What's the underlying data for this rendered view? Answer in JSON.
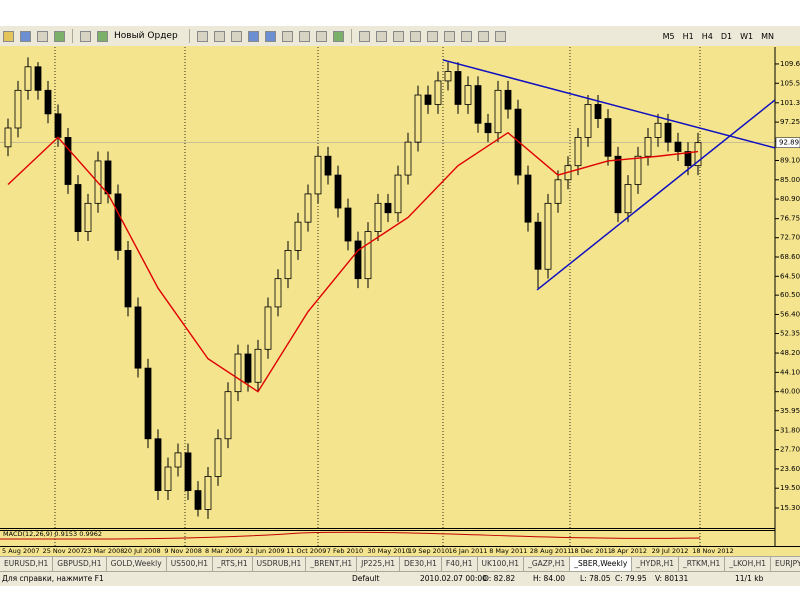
{
  "toolbar": {
    "new_order": "Новый Ордер",
    "timeframes": [
      "M5",
      "H1",
      "H4",
      "D1",
      "W1",
      "MN"
    ]
  },
  "chart_data": {
    "type": "candlestick",
    "background": "#f4e48e",
    "candle_color": "#000000",
    "ohlc": [
      [
        92,
        98,
        90,
        96
      ],
      [
        96,
        106,
        94,
        104
      ],
      [
        104,
        111,
        102,
        109
      ],
      [
        109,
        110,
        102,
        104
      ],
      [
        104,
        106,
        97,
        99
      ],
      [
        99,
        101,
        92,
        94
      ],
      [
        94,
        96,
        82,
        84
      ],
      [
        84,
        86,
        72,
        74
      ],
      [
        74,
        82,
        72,
        80
      ],
      [
        80,
        91,
        78,
        89
      ],
      [
        89,
        91,
        80,
        82
      ],
      [
        82,
        84,
        68,
        70
      ],
      [
        70,
        72,
        56,
        58
      ],
      [
        58,
        60,
        43,
        45
      ],
      [
        45,
        47,
        28,
        30
      ],
      [
        30,
        32,
        17,
        19
      ],
      [
        19,
        26,
        17,
        24
      ],
      [
        24,
        29,
        22,
        27
      ],
      [
        27,
        29,
        17,
        19
      ],
      [
        19,
        21,
        13.5,
        15
      ],
      [
        15,
        24,
        13,
        22
      ],
      [
        22,
        32,
        20,
        30
      ],
      [
        30,
        42,
        28,
        40
      ],
      [
        40,
        50,
        38,
        48
      ],
      [
        48,
        50,
        40,
        42
      ],
      [
        42,
        51,
        40,
        49
      ],
      [
        49,
        60,
        47,
        58
      ],
      [
        58,
        66,
        56,
        64
      ],
      [
        64,
        72,
        62,
        70
      ],
      [
        70,
        78,
        68,
        76
      ],
      [
        76,
        84,
        74,
        82
      ],
      [
        82,
        92,
        80,
        90
      ],
      [
        90,
        92,
        84,
        86
      ],
      [
        86,
        88,
        77,
        79
      ],
      [
        79,
        81,
        70,
        72
      ],
      [
        72,
        74,
        62,
        64
      ],
      [
        64,
        76,
        62,
        74
      ],
      [
        74,
        82,
        72,
        80
      ],
      [
        80,
        82,
        76,
        78
      ],
      [
        78,
        88,
        76,
        86
      ],
      [
        86,
        95,
        84,
        93
      ],
      [
        93,
        105,
        91,
        103
      ],
      [
        103,
        105,
        99,
        101
      ],
      [
        101,
        108,
        99,
        106
      ],
      [
        106,
        110,
        104,
        108
      ],
      [
        108,
        110,
        99,
        101
      ],
      [
        101,
        107,
        99,
        105
      ],
      [
        105,
        107,
        95,
        97
      ],
      [
        97,
        99,
        93,
        95
      ],
      [
        95,
        106,
        93,
        104
      ],
      [
        104,
        106,
        98,
        100
      ],
      [
        100,
        102,
        84,
        86
      ],
      [
        86,
        88,
        74,
        76
      ],
      [
        76,
        78,
        62,
        66
      ],
      [
        66,
        82,
        64,
        80
      ],
      [
        80,
        87,
        78,
        85
      ],
      [
        85,
        90,
        83,
        88
      ],
      [
        88,
        96,
        86,
        94
      ],
      [
        94,
        103,
        92,
        101
      ],
      [
        101,
        103,
        96,
        98
      ],
      [
        98,
        100,
        88,
        90
      ],
      [
        90,
        92,
        76,
        78
      ],
      [
        78,
        86,
        76,
        84
      ],
      [
        84,
        92,
        82,
        90
      ],
      [
        90,
        96,
        88,
        94
      ],
      [
        94,
        99,
        92,
        97
      ],
      [
        97,
        99,
        91,
        93
      ],
      [
        93,
        95,
        89,
        91
      ],
      [
        91,
        93,
        86,
        88
      ],
      [
        88,
        95,
        86,
        92.89
      ]
    ],
    "ma": {
      "color": "#e00000",
      "x": [
        0,
        5,
        10,
        15,
        20,
        25,
        30,
        35,
        40,
        45,
        50,
        55,
        60,
        65,
        69
      ],
      "values": [
        84,
        94,
        82,
        62,
        47,
        40,
        57,
        70,
        77,
        88,
        95,
        86,
        89,
        90,
        91
      ]
    },
    "trendlines": {
      "color": "#1010c0",
      "lines": [
        {
          "x": [
            43.5,
            76.7
          ],
          "y": [
            110.45,
            91.76
          ]
        },
        {
          "x": [
            52.9,
            76.7
          ],
          "y": [
            61.6,
            101.95
          ]
        }
      ]
    },
    "xlim": [
      -0.8,
      76.7
    ],
    "ylim": [
      11.05,
      113.2
    ],
    "yticks": [
      {
        "value": 109.6,
        "label": "109.60"
      },
      {
        "value": 105.5,
        "label": "105.50"
      },
      101.35,
      97.25,
      {
        "value": 93.1,
        "label": "93.10"
      },
      {
        "value": 89.1,
        "label": "89.10"
      },
      {
        "value": 85,
        "label": "85.00"
      },
      {
        "value": 80.9,
        "label": "80.90"
      },
      76.75,
      {
        "value": 72.7,
        "label": "72.70"
      },
      {
        "value": 68.6,
        "label": "68.60"
      },
      {
        "value": 64.5,
        "label": "64.50"
      },
      {
        "value": 60.5,
        "label": "60.50"
      },
      {
        "value": 56.4,
        "label": "56.40"
      },
      52.35,
      {
        "value": 48.2,
        "label": "48.20"
      },
      {
        "value": 44.1,
        "label": "44.10"
      },
      {
        "value": 40,
        "label": "40.00"
      },
      35.95,
      {
        "value": 31.8,
        "label": "31.80"
      },
      {
        "value": 27.7,
        "label": "27.70"
      },
      {
        "value": 23.6,
        "label": "23.60"
      },
      {
        "value": 19.5,
        "label": "19.50"
      },
      {
        "value": 15.3,
        "label": "15.30"
      }
    ],
    "last_price": 92.89,
    "time_labels": [
      "5 Aug 2007",
      "25 Nov 2007",
      "23 Mar 2008",
      "20 Jul 2008",
      "9 Nov 2008",
      "8 Mar 2009",
      "21 Jun 2009",
      "11 Oct 2009",
      "7 Feb 2010",
      "30 May 2010",
      "19 Sep 2010",
      "16 Jan 2011",
      "8 May 2011",
      "28 Aug 2011",
      "18 Dec 2011",
      "8 Apr 2012",
      "29 Jul 2012",
      "18 Nov 2012"
    ],
    "indicator_label": "MACD(12,26,9) 0.9153 0.9962"
  },
  "tabs": {
    "items": [
      "EURUSD,H1",
      "GBPUSD,H1",
      "GOLD,Weekly",
      "US500,H1",
      "_RTS,H1",
      "USDRUB,H1",
      "_BRENT,H1",
      "JP225,H1",
      "DE30,H1",
      "F40,H1",
      "UK100,H1",
      "_GAZP,H1",
      "_SBER,Weekly",
      "_HYDR,H1",
      "_RTKM,H1",
      "_LKOH,H1",
      "EURJPY,H"
    ],
    "active": 12
  },
  "status_bar": {
    "help": "Для справки, нажмите F1",
    "profile": "Default",
    "time": "2010.02.07 00:00",
    "open": "O: 82.82",
    "high": "H: 84.00",
    "low": "L: 78.05",
    "close": "C: 79.95",
    "volume": "V: 80131",
    "traffic": "11/1 kb"
  }
}
